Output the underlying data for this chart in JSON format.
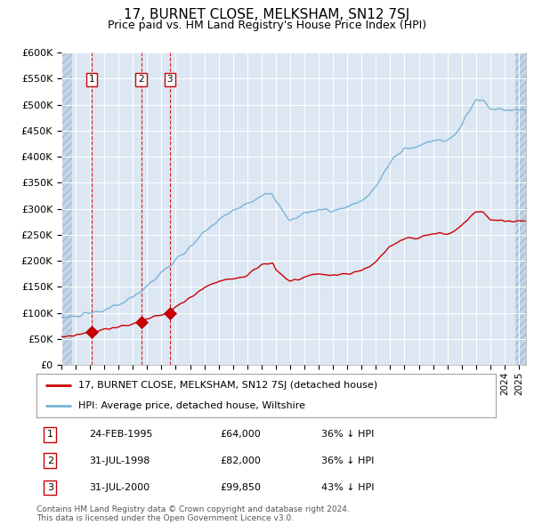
{
  "title": "17, BURNET CLOSE, MELKSHAM, SN12 7SJ",
  "subtitle": "Price paid vs. HM Land Registry's House Price Index (HPI)",
  "legend_label_red": "17, BURNET CLOSE, MELKSHAM, SN12 7SJ (detached house)",
  "legend_label_blue": "HPI: Average price, detached house, Wiltshire",
  "footer": "Contains HM Land Registry data © Crown copyright and database right 2024.\nThis data is licensed under the Open Government Licence v3.0.",
  "transactions": [
    {
      "num": 1,
      "date": "24-FEB-1995",
      "price": "£64,000",
      "hpi_diff": "36% ↓ HPI",
      "date_x": 1995.13
    },
    {
      "num": 2,
      "date": "31-JUL-1998",
      "price": "£82,000",
      "hpi_diff": "36% ↓ HPI",
      "date_x": 1998.58
    },
    {
      "num": 3,
      "date": "31-JUL-2000",
      "price": "£99,850",
      "hpi_diff": "43% ↓ HPI",
      "date_x": 2000.58
    }
  ],
  "marker_prices": [
    64000,
    82000,
    99850
  ],
  "ylim": [
    0,
    600000
  ],
  "yticks": [
    0,
    50000,
    100000,
    150000,
    200000,
    250000,
    300000,
    350000,
    400000,
    450000,
    500000,
    550000,
    600000
  ],
  "xmin": 1993.0,
  "xmax": 2025.5,
  "hatch_left_end": 1993.75,
  "hatch_right_start": 2024.75,
  "background_color": "#dce7f3",
  "hatch_face_color": "#c5d5e8",
  "red_line_color": "#cc0000",
  "blue_line_color": "#7ab3d9",
  "vline_color": "#cc0000",
  "grid_color": "#ffffff",
  "title_fontsize": 11,
  "subtitle_fontsize": 9,
  "tick_fontsize": 7.5,
  "ytick_fontsize": 8
}
